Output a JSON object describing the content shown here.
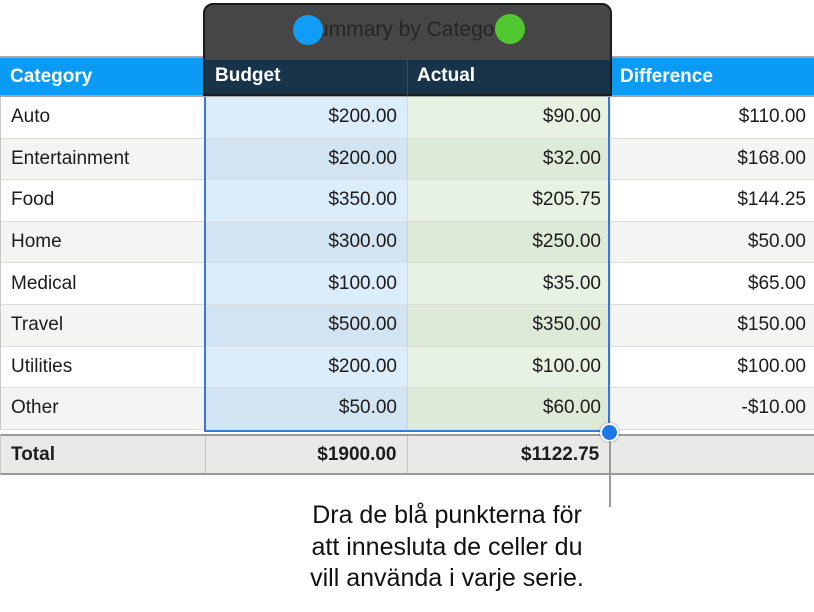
{
  "app_context": "spreadsheet chart data selection",
  "title_bar": {
    "title": "Summary by Category",
    "series_handles": [
      {
        "name": "budget-series",
        "color": "#119df5"
      },
      {
        "name": "actual-series",
        "color": "#50c730"
      }
    ]
  },
  "table": {
    "columns": [
      "Category",
      "Budget",
      "Actual",
      "Difference"
    ],
    "rows": [
      {
        "category": "Auto",
        "budget": "$200.00",
        "actual": "$90.00",
        "difference": "$110.00"
      },
      {
        "category": "Entertainment",
        "budget": "$200.00",
        "actual": "$32.00",
        "difference": "$168.00"
      },
      {
        "category": "Food",
        "budget": "$350.00",
        "actual": "$205.75",
        "difference": "$144.25"
      },
      {
        "category": "Home",
        "budget": "$300.00",
        "actual": "$250.00",
        "difference": "$50.00"
      },
      {
        "category": "Medical",
        "budget": "$100.00",
        "actual": "$35.00",
        "difference": "$65.00"
      },
      {
        "category": "Travel",
        "budget": "$500.00",
        "actual": "$350.00",
        "difference": "$150.00"
      },
      {
        "category": "Utilities",
        "budget": "$200.00",
        "actual": "$100.00",
        "difference": "$100.00"
      },
      {
        "category": "Other",
        "budget": "$50.00",
        "actual": "$60.00",
        "difference": "-$10.00"
      }
    ],
    "total": {
      "label": "Total",
      "budget": "$1900.00",
      "actual": "$1122.75",
      "difference": ""
    }
  },
  "callout": {
    "line1": "Dra de blå punkterna för",
    "line2": "att innesluta de celler du",
    "line3": "vill använda i varje serie."
  },
  "colors": {
    "header-blue": "#0b9bf5",
    "header-navy": "#17344a",
    "overlay-gray": "#464646",
    "sel-blue": "#3b76d6",
    "handle-blue": "#1f78e8",
    "dot-blue": "#119df5",
    "dot-green": "#50c730",
    "cell-blue": "#dbecfa",
    "cell-green": "#e7f2e2",
    "total-bg": "#e9e9e7"
  }
}
